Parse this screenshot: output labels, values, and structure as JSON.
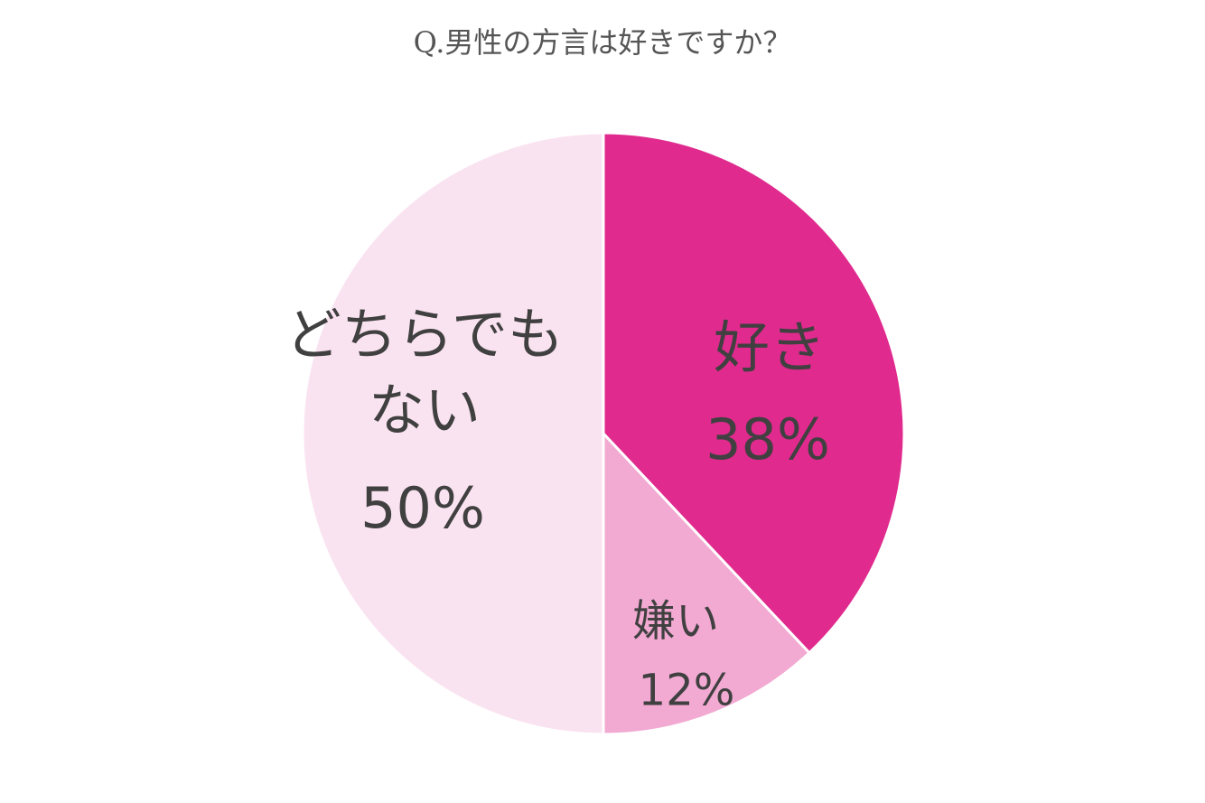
{
  "chart_data": {
    "type": "pie",
    "title": "Q.男性の方言は好きですか？",
    "categories": [
      "好き",
      "嫌い",
      "どちらでもない"
    ],
    "values": [
      38,
      12,
      50
    ],
    "value_labels": [
      "38%",
      "12%",
      "50%"
    ],
    "colors": [
      "#e02a8e",
      "#f2a9d2",
      "#fae3f0"
    ]
  }
}
